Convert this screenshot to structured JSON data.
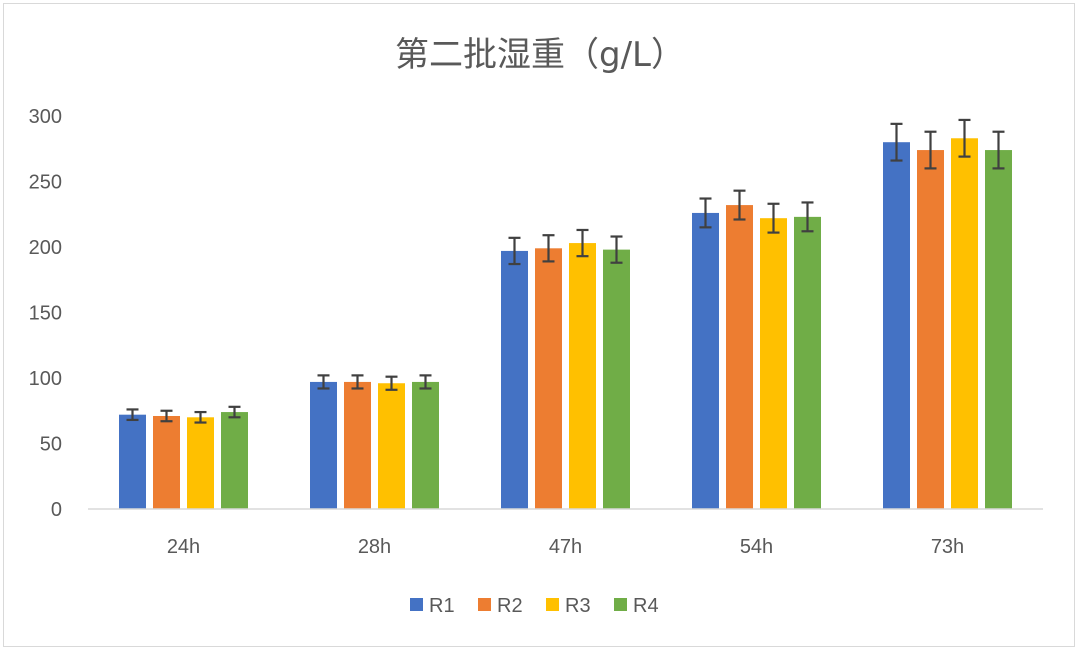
{
  "chart_data": {
    "type": "bar",
    "title": "第二批湿重（g/L）",
    "xlabel": "",
    "ylabel": "",
    "categories": [
      "24h",
      "28h",
      "47h",
      "54h",
      "73h"
    ],
    "ylim": [
      0,
      300
    ],
    "yticks": [
      0,
      50,
      100,
      150,
      200,
      250,
      300
    ],
    "grid": false,
    "legend": "bottom",
    "error_bars": true,
    "series": [
      {
        "name": "R1",
        "color": "#4472c4",
        "values": [
          72,
          97,
          197,
          226,
          280
        ],
        "errors": [
          4,
          5,
          10,
          11,
          14
        ]
      },
      {
        "name": "R2",
        "color": "#ed7d31",
        "values": [
          71,
          97,
          199,
          232,
          274
        ],
        "errors": [
          4,
          5,
          10,
          11,
          14
        ]
      },
      {
        "name": "R3",
        "color": "#ffc000",
        "values": [
          70,
          96,
          203,
          222,
          283
        ],
        "errors": [
          4,
          5,
          10,
          11,
          14
        ]
      },
      {
        "name": "R4",
        "color": "#70ad47",
        "values": [
          74,
          97,
          198,
          223,
          274
        ],
        "errors": [
          4,
          5,
          10,
          11,
          14
        ]
      }
    ]
  }
}
